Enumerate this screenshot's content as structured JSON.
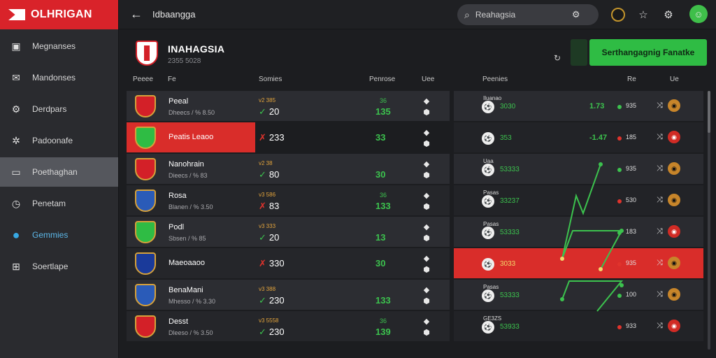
{
  "app": {
    "brand": "OLHRIGAN",
    "colors": {
      "accent": "#d9232a",
      "green": "#2fbc44"
    }
  },
  "sidebar": {
    "items": [
      {
        "label": "Megnanses",
        "icon": "tv-icon"
      },
      {
        "label": "Mandonses",
        "icon": "mail-icon"
      },
      {
        "label": "Derdpars",
        "icon": "gear-icon"
      },
      {
        "label": "Padoonafe",
        "icon": "star-gear-icon"
      },
      {
        "label": "Poethaghan",
        "icon": "card-icon",
        "active": true
      },
      {
        "label": "Penetam",
        "icon": "clock-icon"
      },
      {
        "label": "Gemmies",
        "icon": "dot-icon",
        "highlight": true
      },
      {
        "label": "Soertlape",
        "icon": "grid-icon"
      }
    ]
  },
  "topbar": {
    "title": "Idbaangga",
    "search_value": "Reahagsia"
  },
  "header": {
    "title": "INAHAGSIA",
    "subtitle": "2355 5028",
    "cta_label": "Serthangagnig Fanatke"
  },
  "columns": {
    "left": [
      "Peeee",
      "Fe",
      "Somies",
      "Penrose",
      "Uee"
    ],
    "right": [
      "Peenies",
      "Re",
      "Ue"
    ]
  },
  "rows": [
    {
      "name": "Peeal",
      "sub": "Dheecs / % 8.50",
      "odd_top": "v2 385",
      "odd": "20",
      "mark": "check",
      "num_top": "36",
      "num": "135",
      "crest": "#d32028"
    },
    {
      "name": "Peatis Leaoo",
      "sub": "",
      "odd_top": "",
      "odd": "233",
      "mark": "cross",
      "num_top": "",
      "num": "33",
      "crest": "#2fbc44"
    },
    {
      "name": "Nanohrain",
      "sub": "Dieecs / % 83",
      "odd_top": "v2 38",
      "odd": "80",
      "mark": "check",
      "num_top": "",
      "num": "30",
      "crest": "#d32028"
    },
    {
      "name": "Rosa",
      "sub": "Blanen / % 3.50",
      "odd_top": "v3 586",
      "odd": "83",
      "mark": "cross",
      "num_top": "36",
      "num": "133",
      "crest": "#2a5bb8"
    },
    {
      "name": "Podl",
      "sub": "Sbsen / % 85",
      "odd_top": "v3 333",
      "odd": "20",
      "mark": "check",
      "num_top": "",
      "num": "13",
      "crest": "#2fbc44"
    },
    {
      "name": "Maeoaaoo",
      "sub": "",
      "odd_top": "",
      "odd": "330",
      "mark": "cross",
      "num_top": "",
      "num": "30",
      "crest": "#1a3a9a"
    },
    {
      "name": "BenaMani",
      "sub": "Mhesso / % 3.30",
      "odd_top": "v3 388",
      "odd": "230",
      "mark": "check",
      "num_top": "",
      "num": "133",
      "crest": "#2a5bb8"
    },
    {
      "name": "Desst",
      "sub": "Dleeso / % 3.50",
      "odd_top": "v3 5558",
      "odd": "230",
      "mark": "check",
      "num_top": "36",
      "num": "139",
      "crest": "#d32028"
    }
  ],
  "right_rows": [
    {
      "label": "Iluanao",
      "val": "3030",
      "green": "1.73",
      "num": "935"
    },
    {
      "label": "",
      "val": "353",
      "green": "-1.47",
      "num": "185"
    },
    {
      "label": "Uaa",
      "val": "53333",
      "green": "",
      "num": "935"
    },
    {
      "label": "Pasas",
      "val": "33237",
      "green": "",
      "num": "530"
    },
    {
      "label": "Pasas",
      "val": "53333",
      "green": "",
      "num": "183"
    },
    {
      "label": "",
      "val": "3033",
      "green": "",
      "num": "935"
    },
    {
      "label": "Pasas",
      "val": "53333",
      "green": "",
      "num": "100"
    },
    {
      "label": "GE3ZS",
      "val": "53933",
      "green": "",
      "num": "933"
    }
  ]
}
